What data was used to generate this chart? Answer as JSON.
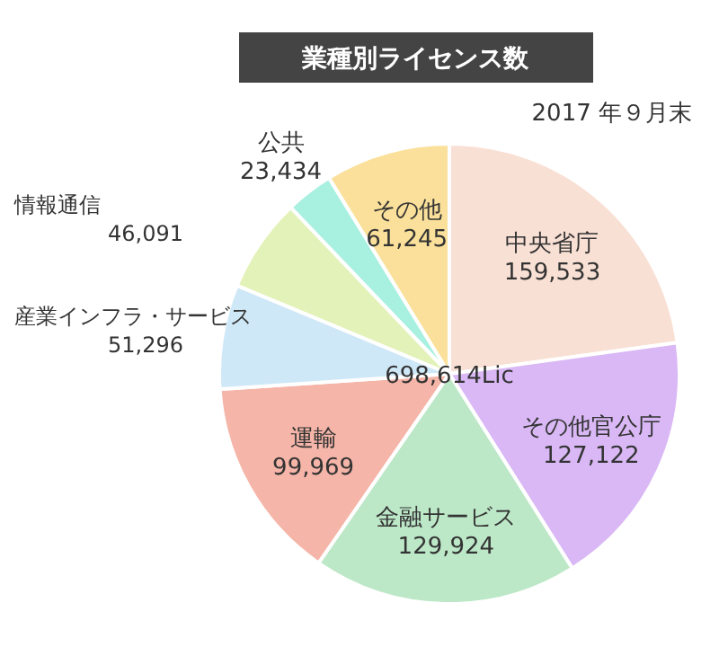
{
  "chart_data": {
    "type": "pie",
    "title": "業種別ライセンス数",
    "subtitle": "2017 年９月末",
    "categories": [
      "中央省庁",
      "その他官公庁",
      "金融サービス",
      "運輸",
      "産業インフラ・サービス",
      "情報通信",
      "公共",
      "その他"
    ],
    "values": [
      159533,
      127122,
      129924,
      99969,
      51296,
      46091,
      23434,
      61245
    ],
    "value_labels": [
      "159,533",
      "127,122",
      "129,924",
      "99,969",
      "51,296",
      "46,091",
      "23,434",
      "61,245"
    ],
    "colors": [
      "#f9e0d4",
      "#d9b8f5",
      "#bde8c8",
      "#f5b5a8",
      "#cfe8f7",
      "#e3f2b8",
      "#a8f0e0",
      "#fae09a"
    ],
    "annotations": [
      "698,614Lic"
    ]
  }
}
